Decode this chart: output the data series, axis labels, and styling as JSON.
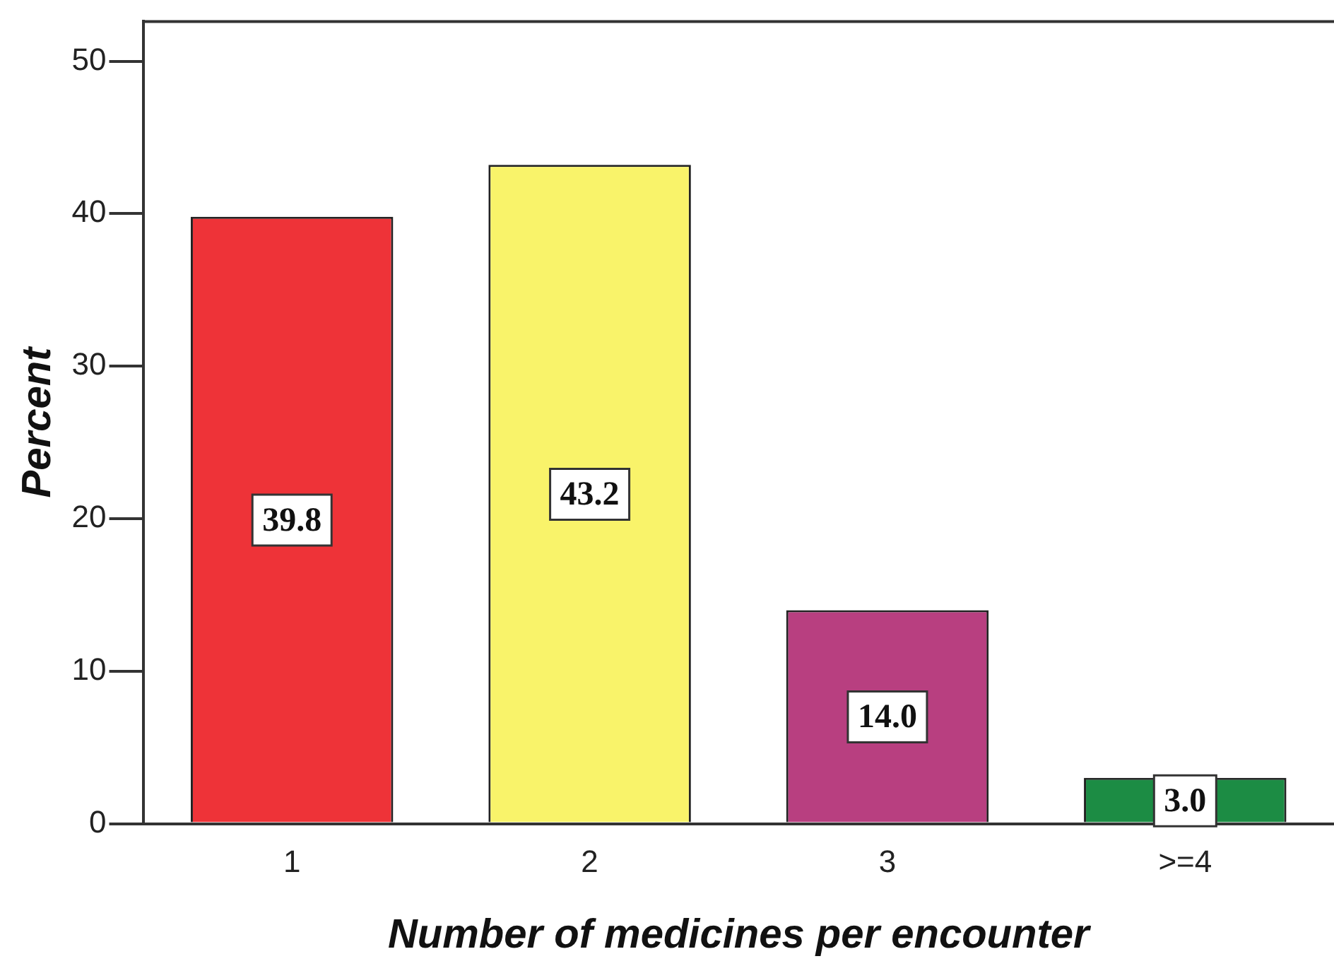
{
  "chart_data": {
    "type": "bar",
    "xlabel": "Number of medicines per encounter",
    "ylabel": "Percent",
    "categories": [
      "1",
      "2",
      "3",
      ">=4"
    ],
    "values": [
      39.8,
      43.2,
      14.0,
      3.0
    ],
    "colors": [
      "#ee3338",
      "#f9f36a",
      "#b83f80",
      "#1c8c44"
    ],
    "value_labels": [
      "39.8",
      "43.2",
      "14.0",
      "3.0"
    ],
    "ylim": [
      0,
      52.6
    ],
    "yticks": [
      0,
      10,
      20,
      30,
      40,
      50
    ],
    "grid": false,
    "legend": false
  }
}
